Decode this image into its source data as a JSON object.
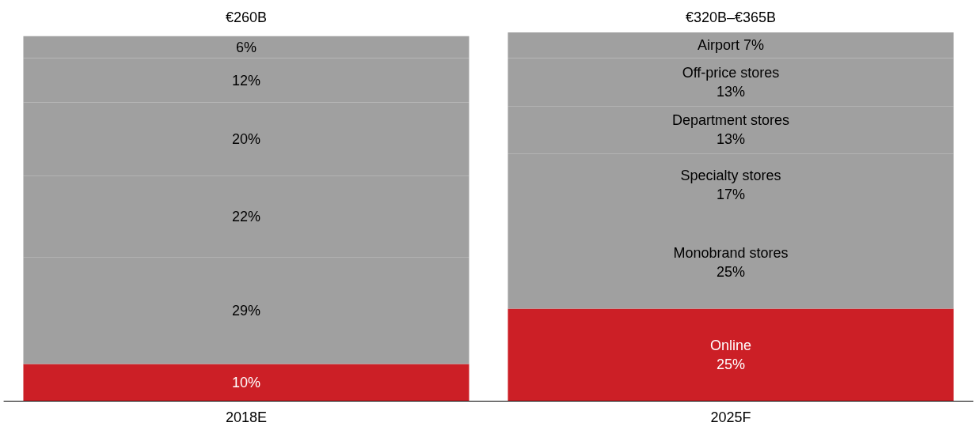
{
  "chart_data": {
    "type": "bar",
    "stacked": true,
    "categories": [
      "2018E",
      "2025F"
    ],
    "annotations": [
      "€260B",
      "€320B–€365B"
    ],
    "series": [
      {
        "name": "Online",
        "color": "#cc1f26",
        "values": [
          10,
          25
        ],
        "value_labels": [
          "10%",
          "25%"
        ]
      },
      {
        "name": "Monobrand stores",
        "color": "#a0a0a0",
        "values": [
          29,
          25
        ],
        "value_labels": [
          "29%",
          "25%"
        ]
      },
      {
        "name": "Specialty stores",
        "color": "#a0a0a0",
        "values": [
          22,
          17
        ],
        "value_labels": [
          "22%",
          "17%"
        ]
      },
      {
        "name": "Department stores",
        "color": "#a0a0a0",
        "values": [
          20,
          13
        ],
        "value_labels": [
          "20%",
          "13%"
        ]
      },
      {
        "name": "Off-price stores",
        "color": "#a0a0a0",
        "values": [
          12,
          13
        ],
        "value_labels": [
          "12%",
          "13%"
        ]
      },
      {
        "name": "Airport",
        "color": "#a0a0a0",
        "values": [
          6,
          7
        ],
        "value_labels": [
          "6%",
          "7%"
        ]
      }
    ]
  }
}
